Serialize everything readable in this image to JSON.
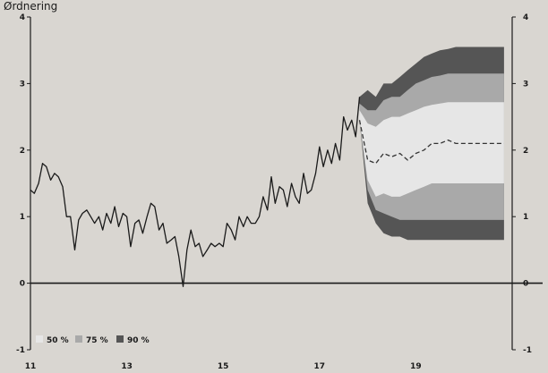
{
  "chart_data": {
    "type": "line",
    "title": "Ørdnering",
    "xlabel": "",
    "ylabel": "",
    "xlim": [
      11,
      21
    ],
    "ylim": [
      -1,
      4
    ],
    "x_ticks": [
      "11",
      "13",
      "15",
      "17",
      "19"
    ],
    "x_tick_values": [
      11,
      13,
      15,
      17,
      19
    ],
    "y_ticks_left": [
      "4",
      "3",
      "2",
      "1",
      "0",
      "-1"
    ],
    "y_ticks_right": [
      "4",
      "3",
      "2",
      "1",
      "0",
      "-1"
    ],
    "y_tick_values": [
      4,
      3,
      2,
      1,
      0,
      -1
    ],
    "legend": {
      "placement": "bottom-left",
      "items": [
        {
          "label": "50 %",
          "color": "#e6e6e6"
        },
        {
          "label": "75 %",
          "color": "#a9a9a9"
        },
        {
          "label": "90 %",
          "color": "#555555"
        }
      ]
    },
    "series": [
      {
        "style": "solid",
        "color": "#1a1a1a",
        "x": [
          11.0,
          11.08,
          11.17,
          11.25,
          11.33,
          11.42,
          11.5,
          11.58,
          11.67,
          11.75,
          11.83,
          11.92,
          12.0,
          12.08,
          12.17,
          12.25,
          12.33,
          12.42,
          12.5,
          12.58,
          12.67,
          12.75,
          12.83,
          12.92,
          13.0,
          13.08,
          13.17,
          13.25,
          13.33,
          13.42,
          13.5,
          13.58,
          13.67,
          13.75,
          13.83,
          13.92,
          14.0,
          14.08,
          14.17,
          14.25,
          14.33,
          14.42,
          14.5,
          14.58,
          14.67,
          14.75,
          14.83,
          14.92,
          15.0,
          15.08,
          15.17,
          15.25,
          15.33,
          15.42,
          15.5,
          15.58,
          15.67,
          15.75,
          15.83,
          15.92,
          16.0,
          16.08,
          16.17,
          16.25,
          16.33,
          16.42,
          16.5,
          16.58,
          16.67,
          16.75,
          16.83,
          16.92,
          17.0,
          17.08,
          17.17,
          17.25,
          17.33,
          17.42,
          17.5,
          17.58,
          17.67,
          17.75,
          17.83
        ],
        "values": [
          1.4,
          1.35,
          1.5,
          1.8,
          1.75,
          1.55,
          1.65,
          1.6,
          1.45,
          1.0,
          1.0,
          0.5,
          0.95,
          1.05,
          1.1,
          1.0,
          0.9,
          1.0,
          0.8,
          1.05,
          0.9,
          1.15,
          0.85,
          1.05,
          1.0,
          0.55,
          0.9,
          0.95,
          0.75,
          1.0,
          1.2,
          1.15,
          0.8,
          0.9,
          0.6,
          0.65,
          0.7,
          0.4,
          -0.05,
          0.5,
          0.8,
          0.55,
          0.6,
          0.4,
          0.5,
          0.6,
          0.55,
          0.6,
          0.55,
          0.9,
          0.8,
          0.65,
          1.0,
          0.85,
          1.0,
          0.9,
          0.9,
          1.0,
          1.3,
          1.1,
          1.6,
          1.2,
          1.45,
          1.4,
          1.15,
          1.5,
          1.3,
          1.2,
          1.65,
          1.35,
          1.4,
          1.65,
          2.05,
          1.75,
          2.0,
          1.8,
          2.1,
          1.85,
          2.5,
          2.3,
          2.45,
          2.2,
          2.8
        ]
      },
      {
        "style": "dashed",
        "color": "#333333",
        "x": [
          17.83,
          18.0,
          18.17,
          18.33,
          18.5,
          18.67,
          18.83,
          19.0,
          19.17,
          19.33,
          19.5,
          19.67,
          19.83,
          20.0,
          20.17,
          20.33,
          20.5,
          20.67,
          20.83
        ],
        "values": [
          2.45,
          1.85,
          1.8,
          1.95,
          1.9,
          1.95,
          1.85,
          1.95,
          2.0,
          2.1,
          2.1,
          2.15,
          2.1,
          2.1,
          2.1,
          2.1,
          2.1,
          2.1,
          2.1
        ]
      }
    ],
    "fan": {
      "x": [
        17.83,
        18.0,
        18.17,
        18.33,
        18.5,
        18.67,
        18.83,
        19.0,
        19.17,
        19.33,
        19.5,
        19.67,
        19.83,
        20.0,
        20.17,
        20.33,
        20.5,
        20.67,
        20.83
      ],
      "bands": [
        {
          "name": "90 %",
          "upper": [
            2.8,
            2.9,
            2.8,
            3.0,
            3.0,
            3.1,
            3.2,
            3.3,
            3.4,
            3.45,
            3.5,
            3.52,
            3.55,
            3.55,
            3.55,
            3.55,
            3.55,
            3.55,
            3.55
          ],
          "lower": [
            2.45,
            1.2,
            0.9,
            0.75,
            0.7,
            0.7,
            0.65,
            0.65,
            0.65,
            0.65,
            0.65,
            0.65,
            0.65,
            0.65,
            0.65,
            0.65,
            0.65,
            0.65,
            0.65
          ]
        },
        {
          "name": "75 %",
          "upper": [
            2.7,
            2.6,
            2.6,
            2.75,
            2.8,
            2.8,
            2.9,
            3.0,
            3.05,
            3.1,
            3.12,
            3.15,
            3.15,
            3.15,
            3.15,
            3.15,
            3.15,
            3.15,
            3.15
          ],
          "lower": [
            2.45,
            1.4,
            1.1,
            1.05,
            1.0,
            0.95,
            0.95,
            0.95,
            0.95,
            0.95,
            0.95,
            0.95,
            0.95,
            0.95,
            0.95,
            0.95,
            0.95,
            0.95,
            0.95
          ]
        },
        {
          "name": "50 %",
          "upper": [
            2.6,
            2.4,
            2.35,
            2.45,
            2.5,
            2.5,
            2.55,
            2.6,
            2.65,
            2.68,
            2.7,
            2.72,
            2.72,
            2.72,
            2.72,
            2.72,
            2.72,
            2.72,
            2.72
          ],
          "lower": [
            2.45,
            1.55,
            1.3,
            1.35,
            1.3,
            1.3,
            1.35,
            1.4,
            1.45,
            1.5,
            1.5,
            1.5,
            1.5,
            1.5,
            1.5,
            1.5,
            1.5,
            1.5,
            1.5
          ]
        }
      ]
    }
  }
}
